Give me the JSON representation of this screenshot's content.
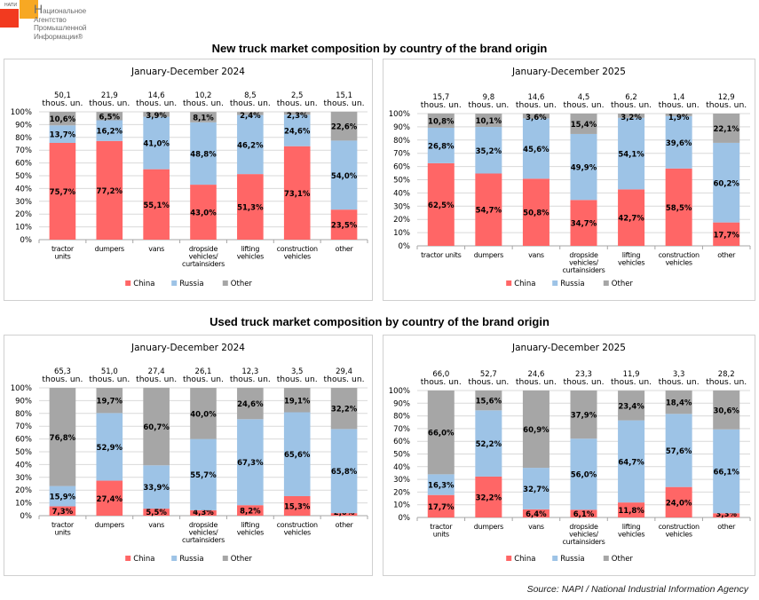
{
  "logo": {
    "abbr": "НАПИ",
    "first_letter": "Н",
    "line1_rest": "ациональное",
    "line2": "Агентство",
    "line3": "Промышленной",
    "line4": "Информации®"
  },
  "section_titles": {
    "new": "New truck market composition by country of the brand origin",
    "used": "Used truck market composition by country of the brand origin"
  },
  "source": "Source: NAPI / National Industrial Information Agency",
  "colors": {
    "China": "#ff6666",
    "Russia": "#9dc3e6",
    "Other": "#a6a6a6"
  },
  "chart_data": [
    {
      "id": "new-2024",
      "type": "bar",
      "stacked": "percent",
      "title": "January-December 2024",
      "categories": [
        "tractor units",
        "dumpers",
        "vans",
        "dropside vehicles/ curtainsiders",
        "lifting vehicles",
        "construction vehicles",
        "other"
      ],
      "category_lines": [
        [
          "tractor",
          "units"
        ],
        [
          "dumpers"
        ],
        [
          "vans"
        ],
        [
          "dropside",
          "vehicles/",
          "curtainsiders"
        ],
        [
          "lifting",
          "vehicles"
        ],
        [
          "construction",
          "vehicles"
        ],
        [
          "other"
        ]
      ],
      "totals": [
        "50,1",
        "21,9",
        "14,6",
        "10,2",
        "8,5",
        "2,5",
        "15,1"
      ],
      "total_unit": "thous. un.",
      "series": [
        {
          "name": "China",
          "values": [
            75.7,
            77.2,
            55.1,
            43.0,
            51.3,
            73.1,
            23.5
          ]
        },
        {
          "name": "Russia",
          "values": [
            13.7,
            16.2,
            41.0,
            48.8,
            46.2,
            24.6,
            54.0
          ]
        },
        {
          "name": "Other",
          "values": [
            10.6,
            6.5,
            3.9,
            8.1,
            2.4,
            2.3,
            22.6
          ]
        }
      ],
      "ylim": [
        0,
        100
      ],
      "yticks": [
        "0%",
        "10%",
        "20%",
        "30%",
        "40%",
        "50%",
        "60%",
        "70%",
        "80%",
        "90%",
        "100%"
      ],
      "grid": true,
      "legend": "bottom"
    },
    {
      "id": "new-2025",
      "type": "bar",
      "stacked": "percent",
      "title": "January-December 2025",
      "categories": [
        "tractor units",
        "dumpers",
        "vans",
        "dropside vehicles/ curtainsiders",
        "lifting vehicles",
        "construction vehicles",
        "other"
      ],
      "category_lines": [
        [
          "tractor units"
        ],
        [
          "dumpers"
        ],
        [
          "vans"
        ],
        [
          "dropside",
          "vehicles/",
          "curtainsiders"
        ],
        [
          "lifting",
          "vehicles"
        ],
        [
          "construction",
          "vehicles"
        ],
        [
          "other"
        ]
      ],
      "totals": [
        "15,7",
        "9,8",
        "14,6",
        "4,5",
        "6,2",
        "1,4",
        "12,9"
      ],
      "total_unit": "thous. un.",
      "series": [
        {
          "name": "China",
          "values": [
            62.5,
            54.7,
            50.8,
            34.7,
            42.7,
            58.5,
            17.7
          ]
        },
        {
          "name": "Russia",
          "values": [
            26.8,
            35.2,
            45.6,
            49.9,
            54.1,
            39.6,
            60.2
          ]
        },
        {
          "name": "Other",
          "values": [
            10.8,
            10.1,
            3.6,
            15.4,
            3.2,
            1.9,
            22.1
          ]
        }
      ],
      "ylim": [
        0,
        100
      ],
      "yticks": [
        "0%",
        "10%",
        "20%",
        "30%",
        "40%",
        "50%",
        "60%",
        "70%",
        "80%",
        "90%",
        "100%"
      ],
      "grid": true,
      "legend": "bottom"
    },
    {
      "id": "used-2024",
      "type": "bar",
      "stacked": "percent",
      "title": "January-December 2024",
      "categories": [
        "tractor units",
        "dumpers",
        "vans",
        "dropside vehicles/ curtainsiders",
        "lifting vehicles",
        "construction vehicles",
        "other"
      ],
      "category_lines": [
        [
          "tractor",
          "units"
        ],
        [
          "dumpers"
        ],
        [
          "vans"
        ],
        [
          "dropside",
          "vehicles/",
          "curtainsiders"
        ],
        [
          "lifting",
          "vehicles"
        ],
        [
          "construction",
          "vehicles"
        ],
        [
          "other"
        ]
      ],
      "totals": [
        "65,3",
        "51,0",
        "27,4",
        "26,1",
        "12,3",
        "3,5",
        "29,4"
      ],
      "total_unit": "thous. un.",
      "series": [
        {
          "name": "China",
          "values": [
            7.3,
            27.4,
            5.5,
            4.3,
            8.2,
            15.3,
            2.0
          ]
        },
        {
          "name": "Russia",
          "values": [
            15.9,
            52.9,
            33.9,
            55.7,
            67.3,
            65.6,
            65.8
          ]
        },
        {
          "name": "Other",
          "values": [
            76.8,
            19.7,
            60.7,
            40.0,
            24.6,
            19.1,
            32.2
          ]
        }
      ],
      "ylim": [
        0,
        100
      ],
      "yticks": [
        "0%",
        "10%",
        "20%",
        "30%",
        "40%",
        "50%",
        "60%",
        "70%",
        "80%",
        "90%",
        "100%"
      ],
      "grid": true,
      "legend": "bottom"
    },
    {
      "id": "used-2025",
      "type": "bar",
      "stacked": "percent",
      "title": "January-December 2025",
      "categories": [
        "tractor units",
        "dumpers",
        "vans",
        "dropside vehicles/ curtainsiders",
        "lifting vehicles",
        "construction vehicles",
        "other"
      ],
      "category_lines": [
        [
          "tractor",
          "units"
        ],
        [
          "dumpers"
        ],
        [
          "vans"
        ],
        [
          "dropside",
          "vehicles/",
          "curtainsiders"
        ],
        [
          "lifting",
          "vehicles"
        ],
        [
          "construction",
          "vehicles"
        ],
        [
          "other"
        ]
      ],
      "totals": [
        "66,0",
        "52,7",
        "24,6",
        "23,3",
        "11,9",
        "3,3",
        "28,2"
      ],
      "total_unit": "thous. un.",
      "series": [
        {
          "name": "China",
          "values": [
            17.7,
            32.2,
            6.4,
            6.1,
            11.8,
            24.0,
            3.3
          ]
        },
        {
          "name": "Russia",
          "values": [
            16.3,
            52.2,
            32.7,
            56.0,
            64.7,
            57.6,
            66.1
          ]
        },
        {
          "name": "Other",
          "values": [
            66.0,
            15.6,
            60.9,
            37.9,
            23.4,
            18.4,
            30.6
          ]
        }
      ],
      "ylim": [
        0,
        100
      ],
      "yticks": [
        "0%",
        "10%",
        "20%",
        "30%",
        "40%",
        "50%",
        "60%",
        "70%",
        "80%",
        "90%",
        "100%"
      ],
      "grid": true,
      "legend": "bottom"
    }
  ]
}
